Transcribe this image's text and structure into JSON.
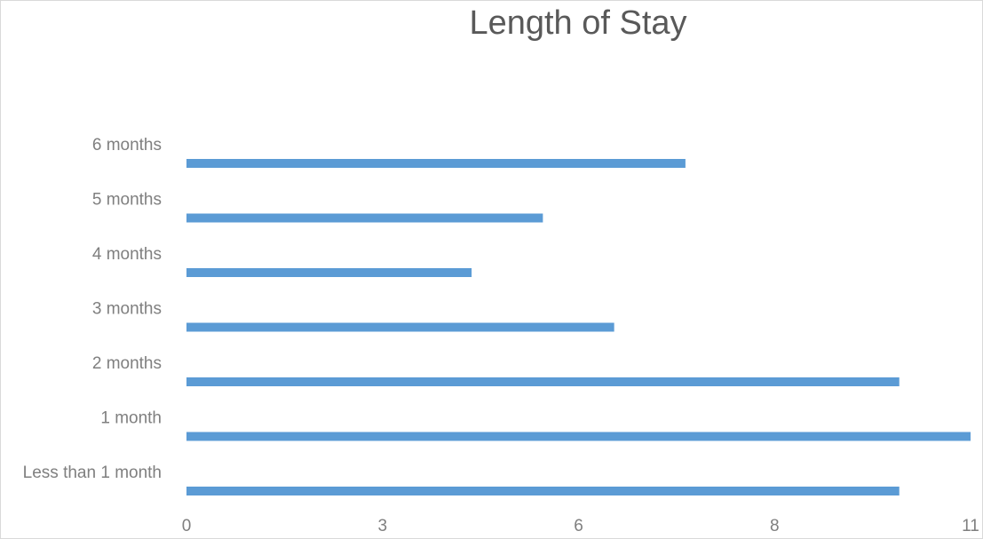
{
  "chart_data": {
    "type": "bar",
    "orientation": "horizontal",
    "title": "Length of Stay",
    "categories": [
      "Less than 1 month",
      "1 month",
      "2 months",
      "3 months",
      "4 months",
      "5 months",
      "6 months"
    ],
    "values": [
      10,
      11,
      10,
      6,
      4,
      5,
      7
    ],
    "x_ticks": [
      "0",
      "3",
      "6",
      "8",
      "11"
    ],
    "xlim": [
      0,
      11
    ],
    "grid": false,
    "legend": "none",
    "bar_color": "#5b9bd5"
  }
}
